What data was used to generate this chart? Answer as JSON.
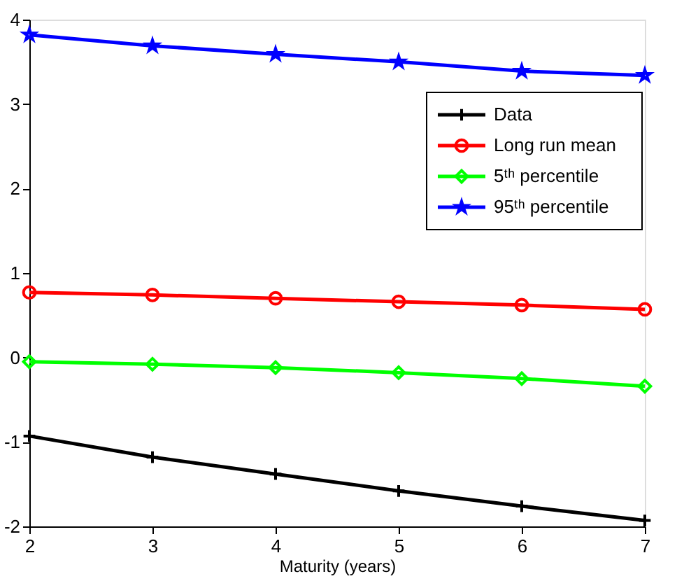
{
  "chart_data": {
    "type": "line",
    "xlabel": "Maturity (years)",
    "x": [
      2,
      3,
      4,
      5,
      6,
      7
    ],
    "xlim": [
      2,
      7
    ],
    "xticks": [
      2,
      3,
      4,
      5,
      6,
      7
    ],
    "ylim": [
      -2,
      4
    ],
    "yticks": [
      -2,
      -1,
      0,
      1,
      2,
      3,
      4
    ],
    "grid": false,
    "legend": "top right",
    "line_style": "solid",
    "series": [
      {
        "name": "Data",
        "color": "#000000",
        "marker": "cross",
        "values": [
          -0.93,
          -1.18,
          -1.38,
          -1.58,
          -1.76,
          -1.93
        ]
      },
      {
        "name": "Long run mean",
        "color": "#ff0000",
        "marker": "circle",
        "values": [
          0.77,
          0.74,
          0.7,
          0.66,
          0.62,
          0.57
        ]
      },
      {
        "name": "5ᵗʰ percentile",
        "color": "#00ff00",
        "marker": "diamond",
        "values": [
          -0.05,
          -0.08,
          -0.12,
          -0.18,
          -0.25,
          -0.34
        ]
      },
      {
        "name": "95ᵗʰ percentile",
        "color": "#0000ff",
        "marker": "star",
        "values": [
          3.82,
          3.69,
          3.59,
          3.5,
          3.39,
          3.34
        ]
      }
    ]
  }
}
